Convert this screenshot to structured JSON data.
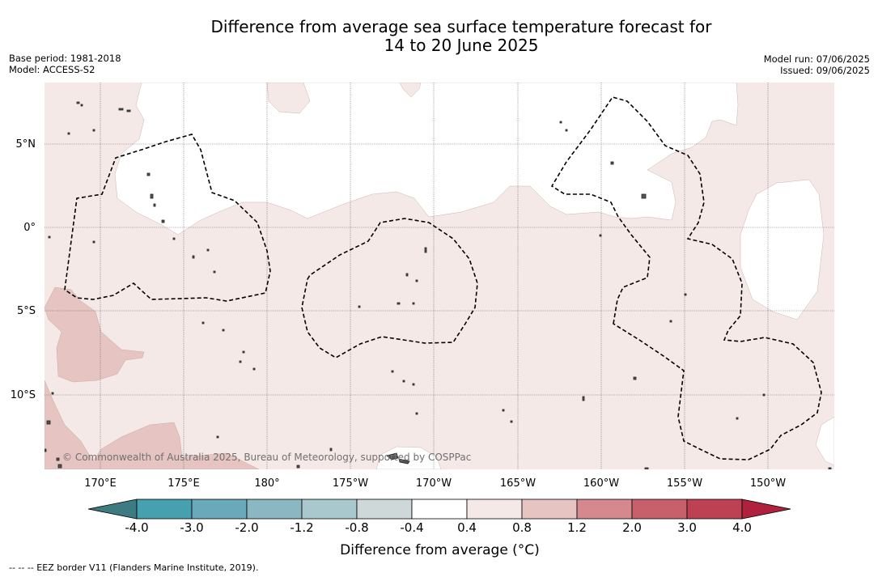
{
  "title": {
    "line1": "Difference from average sea surface temperature forecast for",
    "line2": "14 to 20 June 2025"
  },
  "meta": {
    "base_period": "Base period: 1981-2018",
    "model": "Model: ACCESS-S2",
    "model_run": "Model run: 07/06/2025",
    "issued": "Issued: 09/06/2025"
  },
  "map": {
    "lat_labels": [
      "5°N",
      "0°",
      "5°S",
      "10°S"
    ],
    "lon_labels": [
      "170°E",
      "175°E",
      "180°",
      "175°W",
      "170°W",
      "165°W",
      "160°W",
      "155°W",
      "150°W"
    ],
    "copyright": "© Commonwealth of Australia 2025, Bureau of Meteorology, supported by COSPPac",
    "colors": {
      "light_warm": "#f5e9e7",
      "warm": "#e6c4c1",
      "land": "#555555"
    }
  },
  "colorbar": {
    "label": "Difference from average (°C)",
    "ticks": [
      "-4.0",
      "-3.0",
      "-2.0",
      "-1.2",
      "-0.8",
      "-0.4",
      "0.4",
      "0.8",
      "1.2",
      "2.0",
      "3.0",
      "4.0"
    ],
    "colors": [
      "#3d7b82",
      "#46a0b0",
      "#69a9b9",
      "#8ab7c2",
      "#a9c8cd",
      "#cfd8d8",
      "#ffffff",
      "#f5e9e7",
      "#e6c4c1",
      "#d5898f",
      "#c8606b",
      "#bd4152",
      "#b0213d"
    ]
  },
  "footer": {
    "eez_note": "--  --  -- EEZ border V11 (Flanders Marine Institute, 2019)."
  }
}
